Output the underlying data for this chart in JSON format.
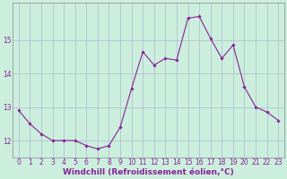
{
  "x": [
    0,
    1,
    2,
    3,
    4,
    5,
    6,
    7,
    8,
    9,
    10,
    11,
    12,
    13,
    14,
    15,
    16,
    17,
    18,
    19,
    20,
    21,
    22,
    23
  ],
  "y": [
    12.9,
    12.5,
    12.2,
    12.0,
    12.0,
    12.0,
    11.85,
    11.75,
    11.85,
    12.4,
    13.55,
    14.65,
    14.25,
    14.45,
    14.4,
    15.65,
    15.7,
    15.05,
    14.45,
    14.85,
    13.6,
    13.0,
    12.85,
    12.6
  ],
  "line_color": "#882299",
  "marker": "D",
  "marker_size": 1.8,
  "bg_color": "#cceedd",
  "grid_color": "#aabbcc",
  "xlabel": "Windchill (Refroidissement éolien,°C)",
  "xlabel_color": "#882299",
  "tick_color": "#882299",
  "axis_color": "#888899",
  "ylim": [
    11.5,
    16.1
  ],
  "xlim": [
    -0.5,
    23.5
  ],
  "yticks": [
    12,
    13,
    14,
    15
  ],
  "xticks": [
    0,
    1,
    2,
    3,
    4,
    5,
    6,
    7,
    8,
    9,
    10,
    11,
    12,
    13,
    14,
    15,
    16,
    17,
    18,
    19,
    20,
    21,
    22,
    23
  ],
  "font_size": 5.5,
  "label_font_size": 6.5,
  "linewidth": 0.8
}
